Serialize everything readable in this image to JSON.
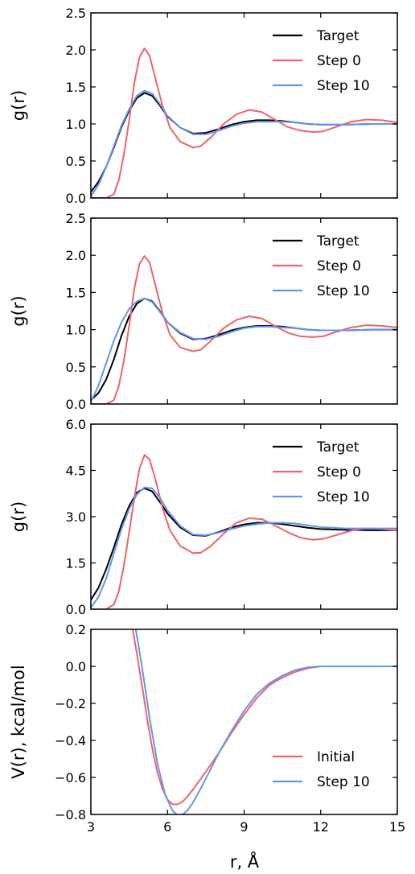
{
  "figure": {
    "xlabel": "r, Å",
    "colors": {
      "target": "#000000",
      "step0": "#f06464",
      "step10": "#6495ed"
    }
  },
  "chart_data": [
    {
      "type": "line",
      "ylabel": "g(r)",
      "xlim": [
        3,
        15
      ],
      "ylim": [
        0,
        2.5
      ],
      "yticks": [
        "0.0",
        "0.5",
        "1.0",
        "1.5",
        "2.0",
        "2.5"
      ],
      "ytick_values": [
        0,
        0.5,
        1.0,
        1.5,
        2.0,
        2.5
      ],
      "legend_position": "top-right",
      "series": [
        {
          "name": "Target",
          "color": "#000000",
          "x": [
            3.0,
            3.3,
            3.6,
            3.9,
            4.2,
            4.5,
            4.8,
            5.1,
            5.4,
            5.7,
            6.0,
            6.5,
            7.0,
            7.5,
            8.0,
            8.5,
            9.0,
            9.5,
            10.0,
            10.5,
            11.0,
            11.5,
            12.0,
            13.0,
            14.0,
            15.0
          ],
          "y": [
            0.08,
            0.22,
            0.42,
            0.68,
            0.96,
            1.18,
            1.35,
            1.42,
            1.38,
            1.25,
            1.1,
            0.95,
            0.87,
            0.88,
            0.93,
            0.99,
            1.03,
            1.05,
            1.05,
            1.04,
            1.02,
            1.0,
            0.99,
            0.99,
            1.0,
            1.0
          ]
        },
        {
          "name": "Step 0",
          "color": "#f06464",
          "x": [
            3.0,
            3.6,
            3.9,
            4.1,
            4.3,
            4.5,
            4.7,
            4.9,
            5.1,
            5.3,
            5.5,
            5.8,
            6.1,
            6.5,
            7.0,
            7.3,
            7.7,
            8.2,
            8.7,
            9.2,
            9.7,
            10.2,
            10.7,
            11.2,
            11.7,
            12.1,
            12.6,
            13.2,
            13.8,
            14.4,
            15.0
          ],
          "y": [
            0.0,
            0.0,
            0.05,
            0.25,
            0.6,
            1.05,
            1.55,
            1.9,
            2.02,
            1.92,
            1.65,
            1.25,
            0.95,
            0.76,
            0.68,
            0.7,
            0.82,
            1.0,
            1.13,
            1.19,
            1.16,
            1.06,
            0.96,
            0.91,
            0.89,
            0.9,
            0.96,
            1.03,
            1.06,
            1.05,
            1.02
          ]
        },
        {
          "name": "Step 10",
          "color": "#6495ed",
          "x": [
            3.0,
            3.3,
            3.6,
            3.9,
            4.2,
            4.5,
            4.8,
            5.1,
            5.4,
            5.7,
            6.0,
            6.5,
            7.0,
            7.5,
            8.0,
            8.5,
            9.0,
            9.5,
            10.0,
            10.5,
            11.0,
            11.5,
            12.0,
            13.0,
            14.0,
            15.0
          ],
          "y": [
            0.02,
            0.18,
            0.42,
            0.7,
            0.98,
            1.2,
            1.38,
            1.45,
            1.41,
            1.27,
            1.11,
            0.95,
            0.86,
            0.86,
            0.91,
            0.97,
            1.01,
            1.03,
            1.03,
            1.03,
            1.02,
            1.0,
            0.99,
            0.99,
            1.0,
            1.0
          ]
        }
      ]
    },
    {
      "type": "line",
      "ylabel": "g(r)",
      "xlim": [
        3,
        15
      ],
      "ylim": [
        0,
        2.5
      ],
      "yticks": [
        "0.0",
        "0.5",
        "1.0",
        "1.5",
        "2.0",
        "2.5"
      ],
      "ytick_values": [
        0,
        0.5,
        1.0,
        1.5,
        2.0,
        2.5
      ],
      "legend_position": "top-right",
      "series": [
        {
          "name": "Target",
          "color": "#000000",
          "x": [
            3.0,
            3.3,
            3.6,
            3.9,
            4.2,
            4.5,
            4.8,
            5.1,
            5.4,
            5.7,
            6.0,
            6.5,
            7.0,
            7.5,
            8.0,
            8.5,
            9.0,
            9.5,
            10.0,
            10.5,
            11.0,
            11.5,
            12.0,
            13.0,
            14.0,
            15.0
          ],
          "y": [
            0.05,
            0.15,
            0.33,
            0.6,
            0.92,
            1.18,
            1.35,
            1.42,
            1.38,
            1.25,
            1.1,
            0.95,
            0.87,
            0.88,
            0.93,
            0.99,
            1.03,
            1.05,
            1.05,
            1.04,
            1.02,
            1.0,
            0.99,
            0.99,
            1.0,
            1.0
          ]
        },
        {
          "name": "Step 0",
          "color": "#f06464",
          "x": [
            3.0,
            3.6,
            3.9,
            4.1,
            4.3,
            4.5,
            4.7,
            4.9,
            5.1,
            5.3,
            5.5,
            5.8,
            6.1,
            6.5,
            7.0,
            7.3,
            7.7,
            8.2,
            8.7,
            9.2,
            9.7,
            10.2,
            10.7,
            11.2,
            11.7,
            12.1,
            12.6,
            13.2,
            13.8,
            14.4,
            15.0
          ],
          "y": [
            0.0,
            0.0,
            0.05,
            0.25,
            0.6,
            1.05,
            1.55,
            1.88,
            1.99,
            1.9,
            1.63,
            1.23,
            0.93,
            0.76,
            0.71,
            0.73,
            0.85,
            1.02,
            1.13,
            1.18,
            1.15,
            1.05,
            0.96,
            0.91,
            0.9,
            0.91,
            0.97,
            1.03,
            1.06,
            1.05,
            1.03
          ]
        },
        {
          "name": "Step 10",
          "color": "#6495ed",
          "x": [
            3.0,
            3.3,
            3.6,
            3.9,
            4.2,
            4.5,
            4.8,
            5.1,
            5.4,
            5.7,
            6.0,
            6.5,
            7.0,
            7.5,
            8.0,
            8.5,
            9.0,
            9.5,
            10.0,
            10.5,
            11.0,
            11.5,
            12.0,
            13.0,
            14.0,
            15.0
          ],
          "y": [
            0.03,
            0.25,
            0.55,
            0.85,
            1.1,
            1.28,
            1.38,
            1.42,
            1.37,
            1.24,
            1.1,
            0.96,
            0.88,
            0.87,
            0.91,
            0.97,
            1.02,
            1.04,
            1.04,
            1.03,
            1.02,
            1.0,
            0.99,
            0.99,
            1.0,
            1.0
          ]
        }
      ]
    },
    {
      "type": "line",
      "ylabel": "g(r)",
      "xlim": [
        3,
        15
      ],
      "ylim": [
        0,
        6.0
      ],
      "yticks": [
        "0.0",
        "1.5",
        "3.0",
        "4.5",
        "6.0"
      ],
      "ytick_values": [
        0,
        1.5,
        3.0,
        4.5,
        6.0
      ],
      "legend_position": "top-right",
      "series": [
        {
          "name": "Target",
          "color": "#000000",
          "x": [
            3.0,
            3.3,
            3.6,
            3.9,
            4.2,
            4.5,
            4.8,
            5.1,
            5.4,
            5.7,
            6.0,
            6.5,
            7.0,
            7.5,
            8.0,
            8.5,
            9.0,
            9.5,
            10.0,
            10.5,
            11.0,
            11.5,
            12.0,
            13.0,
            14.0,
            15.0
          ],
          "y": [
            0.3,
            0.7,
            1.3,
            2.0,
            2.75,
            3.35,
            3.78,
            3.92,
            3.82,
            3.48,
            3.1,
            2.65,
            2.4,
            2.38,
            2.5,
            2.65,
            2.75,
            2.8,
            2.8,
            2.76,
            2.7,
            2.64,
            2.6,
            2.57,
            2.56,
            2.56
          ]
        },
        {
          "name": "Step 0",
          "color": "#f06464",
          "x": [
            3.0,
            3.6,
            3.9,
            4.1,
            4.3,
            4.5,
            4.7,
            4.9,
            5.1,
            5.3,
            5.5,
            5.8,
            6.1,
            6.5,
            7.0,
            7.3,
            7.7,
            8.2,
            8.7,
            9.2,
            9.7,
            10.2,
            10.7,
            11.2,
            11.7,
            12.1,
            12.6,
            13.2,
            13.8,
            14.4,
            15.0
          ],
          "y": [
            0.0,
            0.0,
            0.15,
            0.6,
            1.45,
            2.5,
            3.6,
            4.55,
            5.0,
            4.85,
            4.3,
            3.3,
            2.55,
            2.05,
            1.82,
            1.83,
            2.05,
            2.45,
            2.8,
            2.95,
            2.92,
            2.72,
            2.5,
            2.32,
            2.25,
            2.28,
            2.4,
            2.55,
            2.62,
            2.6,
            2.55
          ]
        },
        {
          "name": "Step 10",
          "color": "#6495ed",
          "x": [
            3.0,
            3.3,
            3.6,
            3.9,
            4.2,
            4.5,
            4.8,
            5.1,
            5.4,
            5.7,
            6.0,
            6.5,
            7.0,
            7.5,
            8.0,
            8.5,
            9.0,
            9.5,
            10.0,
            10.5,
            11.0,
            11.5,
            12.0,
            13.0,
            14.0,
            15.0
          ],
          "y": [
            0.05,
            0.4,
            1.0,
            1.8,
            2.6,
            3.25,
            3.72,
            3.95,
            3.92,
            3.62,
            3.2,
            2.7,
            2.42,
            2.4,
            2.48,
            2.6,
            2.7,
            2.76,
            2.8,
            2.8,
            2.78,
            2.72,
            2.66,
            2.62,
            2.62,
            2.62
          ]
        }
      ]
    },
    {
      "type": "line",
      "ylabel": "V(r), kcal/mol",
      "xlim": [
        3,
        15
      ],
      "ylim": [
        -0.8,
        0.2
      ],
      "yticks": [
        "−0.8",
        "−0.6",
        "−0.4",
        "−0.2",
        "0.0",
        "0.2"
      ],
      "ytick_values": [
        -0.8,
        -0.6,
        -0.4,
        -0.2,
        0.0,
        0.2
      ],
      "xticks": [
        "3",
        "6",
        "9",
        "12",
        "15"
      ],
      "xtick_values": [
        3,
        6,
        9,
        12,
        15
      ],
      "legend_position": "bottom-right",
      "series": [
        {
          "name": "Initial",
          "color": "#f06464",
          "x": [
            4.6,
            4.8,
            5.0,
            5.2,
            5.4,
            5.6,
            5.8,
            6.0,
            6.2,
            6.4,
            6.6,
            6.8,
            7.0,
            7.5,
            8.0,
            8.5,
            9.0,
            9.5,
            10.0,
            10.5,
            11.0,
            11.5,
            12.0,
            13.0,
            14.0,
            15.0
          ],
          "y": [
            0.23,
            0.07,
            -0.1,
            -0.28,
            -0.44,
            -0.57,
            -0.66,
            -0.72,
            -0.745,
            -0.745,
            -0.73,
            -0.7,
            -0.665,
            -0.57,
            -0.47,
            -0.36,
            -0.26,
            -0.17,
            -0.1,
            -0.06,
            -0.03,
            -0.01,
            0.0,
            0.0,
            0.0,
            0.0
          ]
        },
        {
          "name": "Step 10",
          "color": "#6495ed",
          "x": [
            4.72,
            5.0,
            5.3,
            5.6,
            5.9,
            6.2,
            6.4,
            6.6,
            6.8,
            7.0,
            7.3,
            7.6,
            8.0,
            8.5,
            9.0,
            9.5,
            10.0,
            10.5,
            11.0,
            11.5,
            12.0,
            13.0,
            14.0,
            15.0
          ],
          "y": [
            0.23,
            0.0,
            -0.28,
            -0.52,
            -0.69,
            -0.78,
            -0.805,
            -0.8,
            -0.775,
            -0.735,
            -0.66,
            -0.58,
            -0.47,
            -0.35,
            -0.24,
            -0.15,
            -0.09,
            -0.05,
            -0.02,
            -0.005,
            0.0,
            0.0,
            0.0,
            0.0
          ]
        }
      ]
    }
  ]
}
